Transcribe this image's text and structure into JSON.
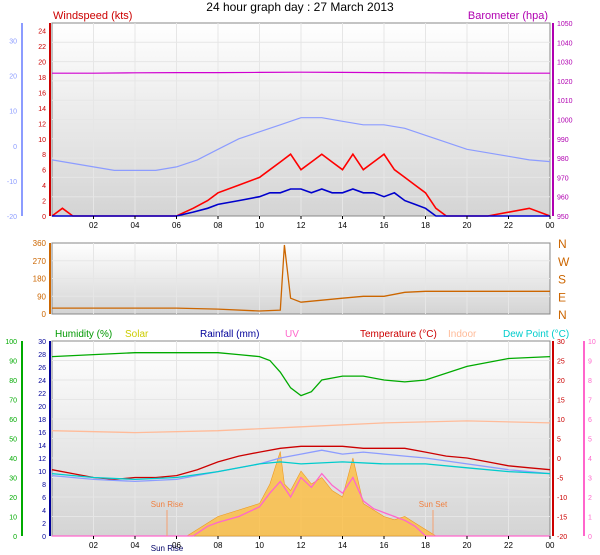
{
  "title": "24 hour graph day : 27 March 2013",
  "x_tick_labels": [
    "02",
    "04",
    "06",
    "08",
    "10",
    "12",
    "14",
    "16",
    "18",
    "20",
    "22",
    "00"
  ],
  "chart_data": [
    {
      "type": "line",
      "panel": "wind-barometer",
      "title": "24 hour graph day : 27 March 2013",
      "left_axis": {
        "label": "Windspeed (kts)",
        "color": "#cc0000",
        "ticks": [
          "24",
          "22",
          "20",
          "18",
          "16",
          "14",
          "12",
          "10",
          "8",
          "6",
          "4",
          "2",
          "0"
        ],
        "range": [
          0,
          25
        ]
      },
      "left_axis_2": {
        "color": "#8c9cff",
        "ticks": [
          "30",
          "20",
          "10",
          "0",
          "-10",
          "-20"
        ],
        "range": [
          -20,
          35
        ]
      },
      "right_axis": {
        "label": "Barometer (hpa)",
        "color": "#b000b0",
        "ticks": [
          "1050",
          "1040",
          "1030",
          "1020",
          "1010",
          "1000",
          "990",
          "980",
          "970",
          "960",
          "950"
        ],
        "range": [
          950,
          1050
        ]
      },
      "x_hours": [
        0,
        24
      ],
      "series": [
        {
          "color": "#d000d0",
          "axis": "barometer",
          "x": [
            0,
            2,
            4,
            6,
            8,
            10,
            12,
            14,
            16,
            18,
            20,
            22,
            24
          ],
          "y": [
            1024.0,
            1024.0,
            1024.2,
            1024.3,
            1024.3,
            1024.4,
            1024.5,
            1024.4,
            1024.3,
            1024.2,
            1024.1,
            1024.0,
            1024.0
          ]
        },
        {
          "color": "#8c9cff",
          "axis": "left2",
          "x": [
            0,
            1,
            2,
            3,
            4,
            5,
            6,
            7,
            8,
            9,
            10,
            11,
            12,
            13,
            14,
            15,
            16,
            17,
            18,
            19,
            20,
            21,
            22,
            23,
            24
          ],
          "y": [
            -4,
            -5,
            -6,
            -7,
            -7,
            -7,
            -6,
            -4,
            -1,
            2,
            4,
            6,
            8,
            8,
            7,
            6,
            6,
            5,
            3,
            1,
            -1,
            -2,
            -3,
            -4,
            -4.5
          ]
        },
        {
          "color": "#ff0000",
          "axis": "wind",
          "x": [
            0,
            0.5,
            1,
            6,
            6.8,
            7.5,
            8,
            9,
            10,
            10.5,
            11,
            11.5,
            12,
            12.5,
            13,
            13.5,
            14,
            14.5,
            15,
            15.5,
            16,
            16.5,
            17,
            17.5,
            18,
            18.5,
            19,
            21,
            23,
            24
          ],
          "y": [
            0,
            1,
            0,
            0,
            1,
            2,
            3,
            4,
            5,
            6,
            7,
            8,
            6,
            7,
            8,
            7,
            6,
            8,
            6,
            7,
            8,
            6,
            5,
            4,
            3,
            1,
            0,
            0,
            1,
            0
          ]
        },
        {
          "color": "#0000cc",
          "axis": "wind",
          "x": [
            0,
            6,
            6.8,
            7.5,
            8,
            9,
            10,
            10.5,
            11,
            11.5,
            12,
            12.5,
            13,
            13.5,
            14,
            14.5,
            15,
            15.5,
            16,
            16.5,
            17,
            17.5,
            18,
            18.5,
            24
          ],
          "y": [
            0,
            0,
            0.5,
            1,
            1.5,
            2,
            2.5,
            3,
            3,
            3.5,
            3.5,
            3,
            3.5,
            3,
            3,
            3.5,
            3,
            3,
            2.5,
            3,
            2,
            1.5,
            1,
            0,
            0
          ]
        }
      ]
    },
    {
      "type": "line",
      "panel": "wind-direction",
      "left_axis": {
        "color": "#cc6600",
        "ticks": [
          "360",
          "270",
          "180",
          "90",
          "0"
        ],
        "range": [
          0,
          360
        ]
      },
      "right_labels": [
        "N",
        "W",
        "S",
        "E",
        "N"
      ],
      "x_hours": [
        0,
        24
      ],
      "series": [
        {
          "color": "#cc6600",
          "x": [
            0,
            2,
            4,
            6,
            8,
            10,
            11,
            11.2,
            11.5,
            12,
            13,
            14,
            15,
            16,
            17,
            18,
            19,
            20,
            22,
            24
          ],
          "y": [
            30,
            30,
            30,
            30,
            25,
            15,
            20,
            350,
            80,
            60,
            70,
            80,
            90,
            90,
            110,
            115,
            115,
            115,
            115,
            115
          ]
        }
      ]
    },
    {
      "type": "line",
      "panel": "humidity-temperature",
      "legend": [
        {
          "label": "Humidity (%)",
          "color": "#009900"
        },
        {
          "label": "Solar",
          "color": "#cccc00"
        },
        {
          "label": "Rainfall (mm)",
          "color": "#000099"
        },
        {
          "label": "UV",
          "color": "#ff66cc"
        },
        {
          "label": "Temperature (°C)",
          "color": "#cc0000"
        },
        {
          "label": "Indoor",
          "color": "#ffbb99"
        },
        {
          "label": "Dew Point (°C)",
          "color": "#00cccc"
        }
      ],
      "axes": {
        "humidity": {
          "ticks": [
            "100",
            "90",
            "80",
            "70",
            "60",
            "50",
            "40",
            "30",
            "20",
            "10",
            "0"
          ],
          "range": [
            0,
            100
          ],
          "color": "#00aa00"
        },
        "rainfall": {
          "ticks": [
            "30",
            "28",
            "26",
            "24",
            "22",
            "20",
            "18",
            "16",
            "14",
            "12",
            "10",
            "8",
            "6",
            "4",
            "2",
            "0"
          ],
          "range": [
            0,
            30
          ],
          "color": "#000099"
        },
        "temperature": {
          "ticks": [
            "30",
            "25",
            "20",
            "15",
            "10",
            "5",
            "0",
            "-5",
            "-10",
            "-15",
            "-20"
          ],
          "range": [
            -20,
            30
          ],
          "color": "#cc0000"
        },
        "uv": {
          "ticks": [
            "10",
            "9",
            "8",
            "7",
            "6",
            "5",
            "4",
            "3",
            "2",
            "1",
            "0"
          ],
          "range": [
            0,
            10
          ],
          "color": "#ff66cc"
        }
      },
      "annotations": [
        "Sun Rise",
        "Sun Set",
        "Sun Rise"
      ],
      "x_hours": [
        0,
        24
      ],
      "series": [
        {
          "name": "Humidity (%)",
          "color": "#00aa00",
          "axis": "humidity",
          "x": [
            0,
            2,
            4,
            6,
            8,
            9,
            10,
            10.5,
            11,
            11.5,
            12,
            12.5,
            13,
            14,
            15,
            16,
            17,
            18,
            20,
            22,
            24
          ],
          "y": [
            92,
            93,
            94,
            94,
            94,
            93,
            92,
            90,
            84,
            76,
            72,
            74,
            80,
            82,
            82,
            80,
            79,
            80,
            87,
            91,
            92
          ]
        },
        {
          "name": "Indoor",
          "color": "#ffbb99",
          "axis": "temperature",
          "x": [
            0,
            4,
            8,
            12,
            16,
            20,
            24
          ],
          "y": [
            7,
            6.5,
            7,
            8,
            9,
            9.5,
            9
          ]
        },
        {
          "name": "Temperature (°C)",
          "color": "#cc0000",
          "axis": "temperature",
          "x": [
            0,
            1,
            2,
            3,
            4,
            5,
            6,
            7,
            8,
            9,
            10,
            11,
            12,
            13,
            14,
            15,
            16,
            17,
            18,
            19,
            20,
            21,
            22,
            23,
            24
          ],
          "y": [
            -3,
            -4,
            -5,
            -5.5,
            -5,
            -5,
            -4.5,
            -3,
            -1,
            0.5,
            1.5,
            2.5,
            3,
            3,
            3,
            2.5,
            2.5,
            2.5,
            1.5,
            0.5,
            0,
            -1,
            -2,
            -2.5,
            -3
          ]
        },
        {
          "name": "",
          "color": "#8c9cff",
          "axis": "temperature",
          "x": [
            0,
            2,
            4,
            6,
            8,
            10,
            11,
            12,
            13,
            14,
            15,
            16,
            17,
            18,
            20,
            22,
            24
          ],
          "y": [
            -4.5,
            -5.5,
            -6,
            -5.5,
            -3.5,
            -1.5,
            0,
            1,
            2,
            1,
            1.5,
            1,
            0.5,
            0,
            -1.5,
            -3,
            -4
          ]
        },
        {
          "name": "Dew Point (°C)",
          "color": "#00cccc",
          "axis": "temperature",
          "x": [
            0,
            2,
            4,
            6,
            8,
            10,
            11,
            12,
            14,
            16,
            18,
            20,
            22,
            24
          ],
          "y": [
            -4,
            -5,
            -5.5,
            -5,
            -3.5,
            -1.5,
            -1,
            -1.5,
            -1,
            -1.5,
            -1.5,
            -2.5,
            -3.5,
            -4
          ]
        },
        {
          "name": "UV",
          "color": "#ff66cc",
          "axis": "uv",
          "x": [
            0,
            6.8,
            7.5,
            8,
            9,
            10,
            10.5,
            11,
            11.5,
            12,
            12.5,
            13,
            13.5,
            14,
            14.5,
            15,
            15.5,
            16,
            16.5,
            17,
            17.5,
            18,
            24
          ],
          "y": [
            0,
            0,
            0.5,
            0.7,
            1,
            1.5,
            2.2,
            2.8,
            2,
            3,
            2.5,
            3.2,
            2.6,
            2.2,
            3,
            1.8,
            1.4,
            1.2,
            1,
            0.8,
            0.5,
            0,
            0
          ]
        }
      ],
      "solar": {
        "color": "#ffbb33",
        "axis": "rainfall",
        "x": [
          6.5,
          7.5,
          8,
          9,
          10,
          10.5,
          11,
          11.2,
          11.5,
          12,
          12.5,
          13,
          13.5,
          14,
          14.5,
          15,
          15.5,
          16,
          16.5,
          17,
          17.5,
          18,
          18.5
        ],
        "y": [
          0,
          2,
          3,
          4,
          5,
          8,
          13,
          8,
          7,
          10,
          8,
          9,
          7,
          6,
          12,
          5,
          4,
          3,
          2.5,
          3,
          2,
          1,
          0
        ]
      }
    }
  ]
}
